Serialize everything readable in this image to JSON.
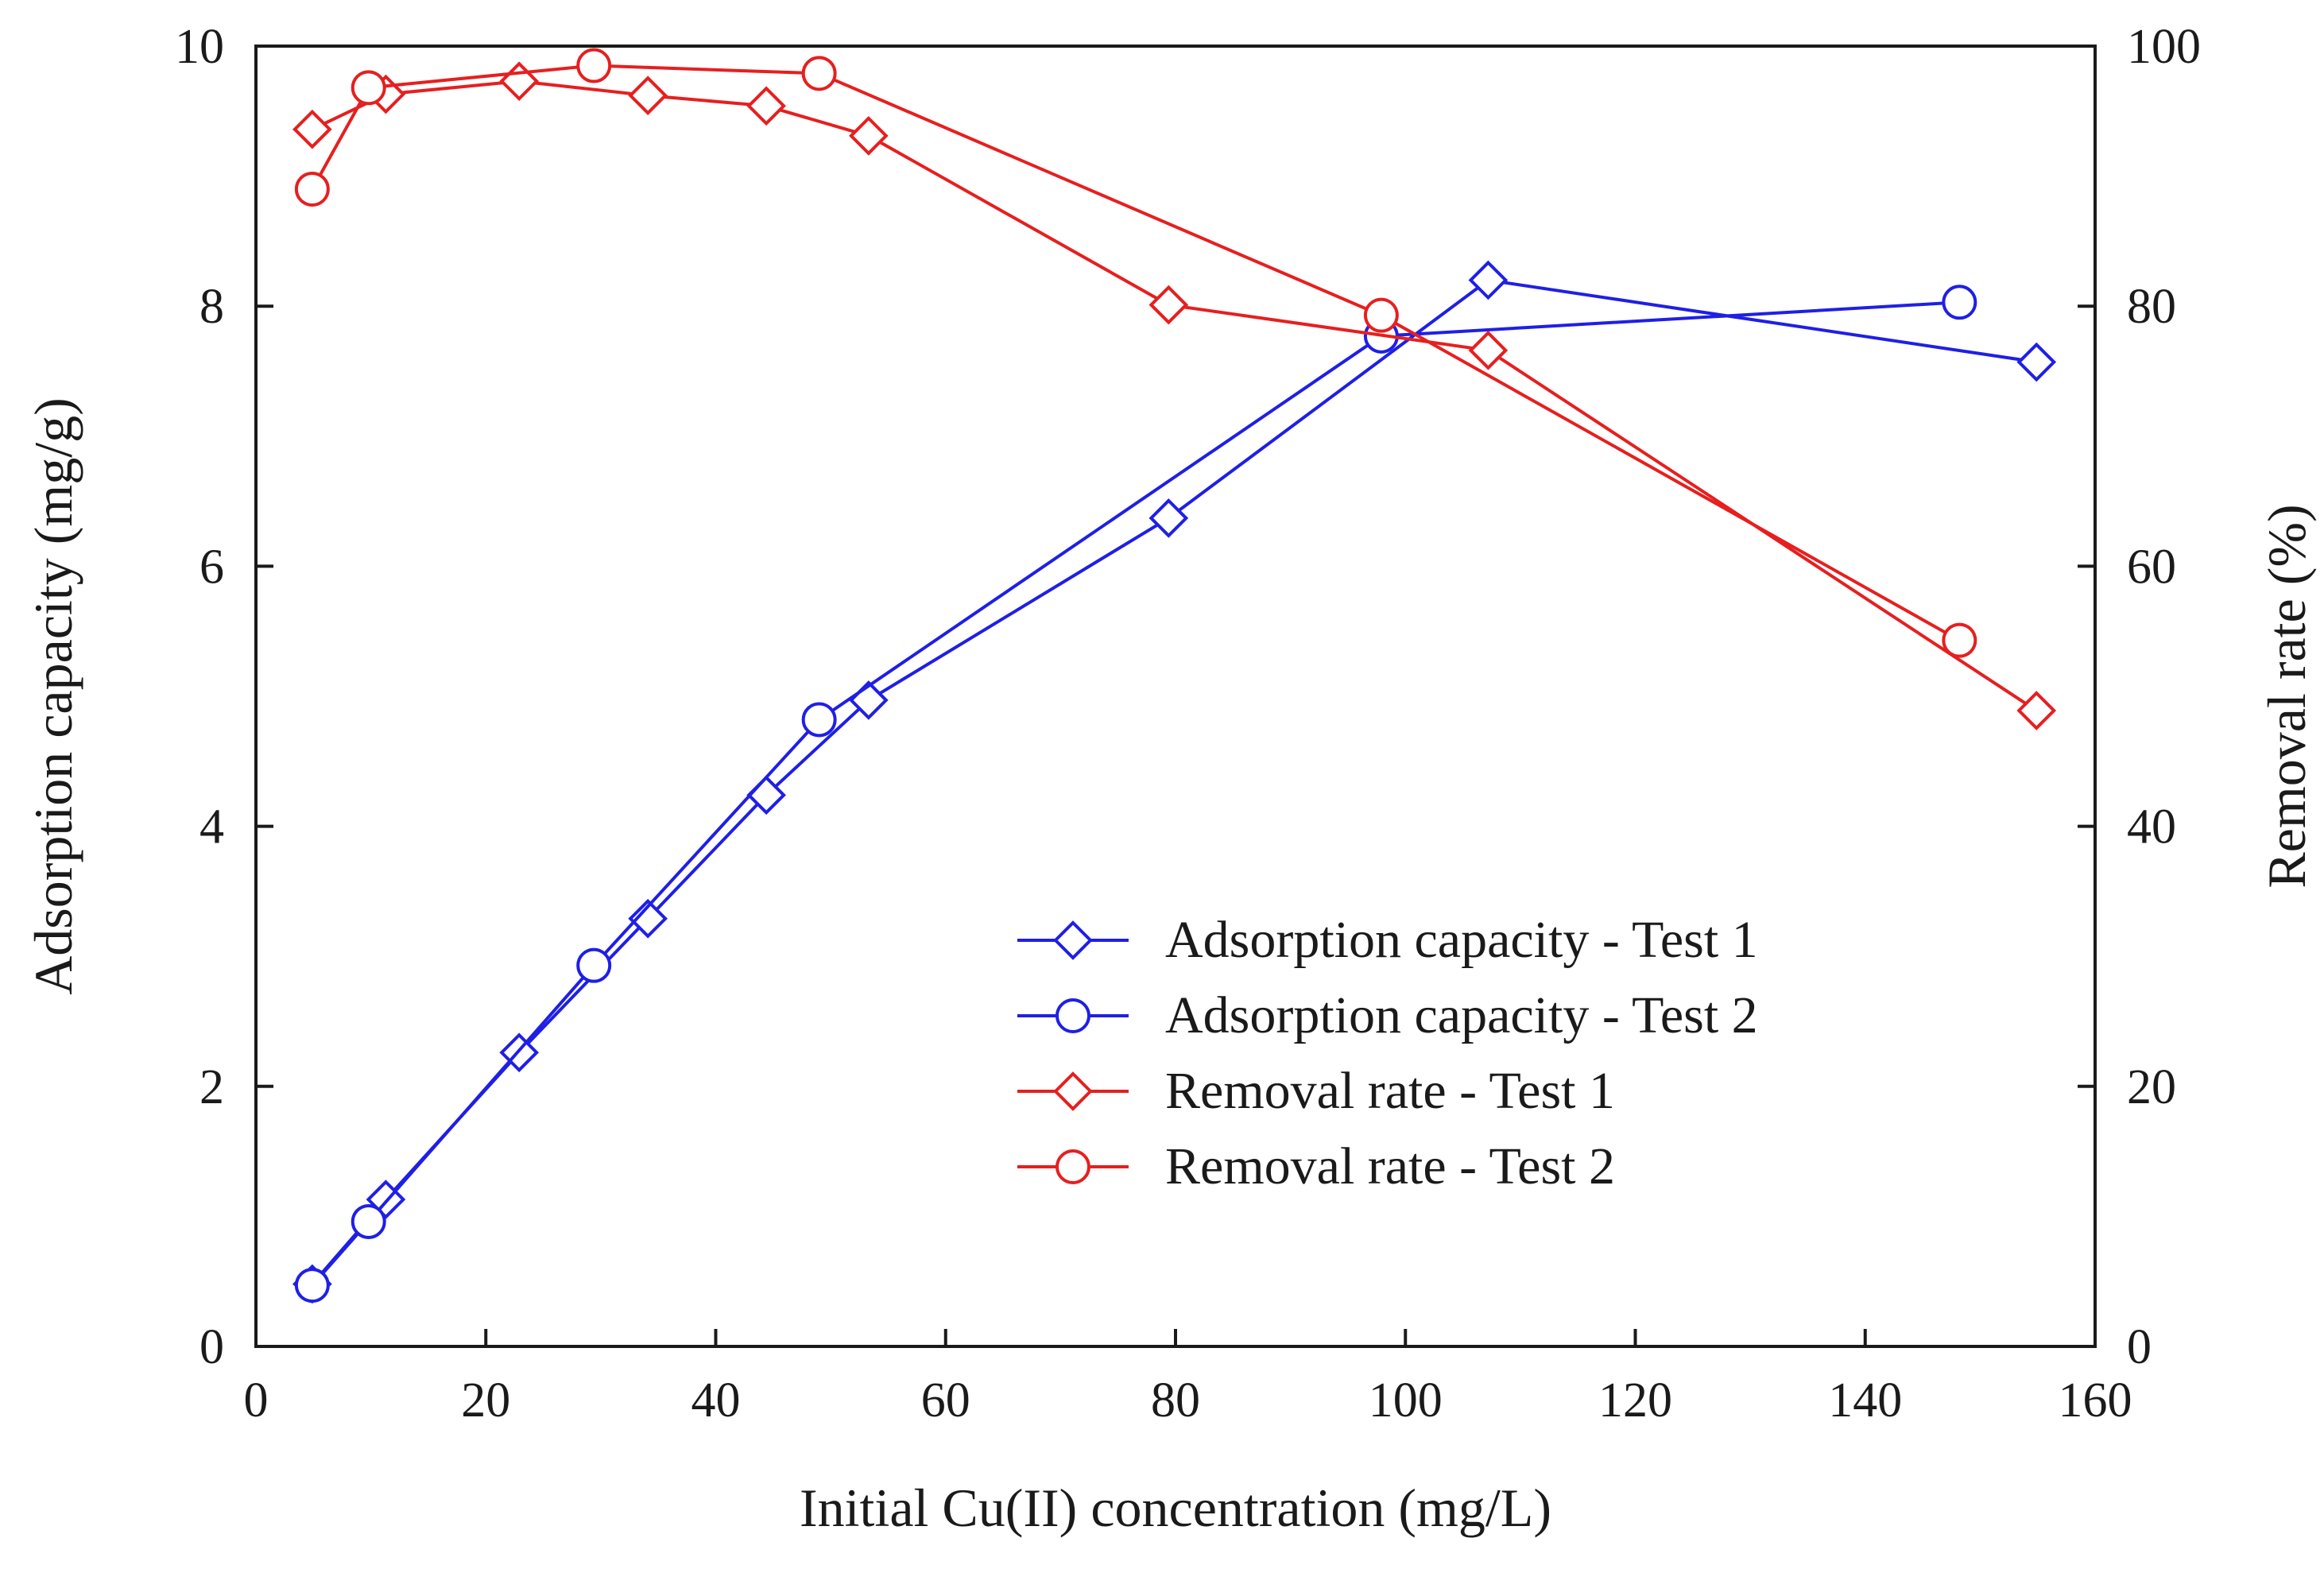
{
  "chart_data": {
    "type": "line",
    "xlabel": "Initial Cu(II) concentration (mg/L)",
    "ylabel_left": "Adsorption capacity (mg/g)",
    "ylabel_right": "Removal rate (%)",
    "xlim": [
      0,
      160
    ],
    "ylim_left": [
      0,
      10
    ],
    "ylim_right": [
      0,
      100
    ],
    "x_ticks": [
      0,
      20,
      40,
      60,
      80,
      100,
      120,
      140,
      160
    ],
    "y_ticks_left": [
      0,
      2,
      4,
      6,
      8,
      10
    ],
    "y_ticks_right": [
      0,
      20,
      40,
      60,
      80,
      100
    ],
    "grid": false,
    "legend_position": "center-right",
    "series": [
      {
        "name": "Adsorption capacity - Test 1",
        "axis": "left",
        "color": "#1f1fe6",
        "marker": "diamond",
        "x": [
          4.9,
          11.3,
          22.9,
          34.1,
          44.4,
          53.3,
          79.4,
          107.2,
          154.9
        ],
        "y": [
          0.48,
          1.13,
          2.26,
          3.29,
          4.24,
          4.97,
          6.37,
          8.2,
          7.57
        ]
      },
      {
        "name": "Adsorption capacity - Test 2",
        "axis": "left",
        "color": "#1f1fe6",
        "marker": "circle",
        "x": [
          4.9,
          9.8,
          29.4,
          49.0,
          97.9,
          148.2
        ],
        "y": [
          0.47,
          0.96,
          2.93,
          4.82,
          7.77,
          8.03
        ]
      },
      {
        "name": "Removal rate - Test 1",
        "axis": "right",
        "color": "#e61f1f",
        "marker": "diamond",
        "x": [
          4.9,
          11.3,
          22.9,
          34.1,
          44.4,
          53.3,
          79.4,
          107.2,
          154.9
        ],
        "y": [
          93.6,
          96.3,
          97.3,
          96.2,
          95.4,
          93.1,
          80.1,
          76.6,
          48.9
        ]
      },
      {
        "name": "Removal rate - Test 2",
        "axis": "right",
        "color": "#e61f1f",
        "marker": "circle",
        "x": [
          4.9,
          9.8,
          29.4,
          49.0,
          97.9,
          148.2
        ],
        "y": [
          89.0,
          96.8,
          98.5,
          97.9,
          79.3,
          54.3
        ]
      }
    ]
  }
}
